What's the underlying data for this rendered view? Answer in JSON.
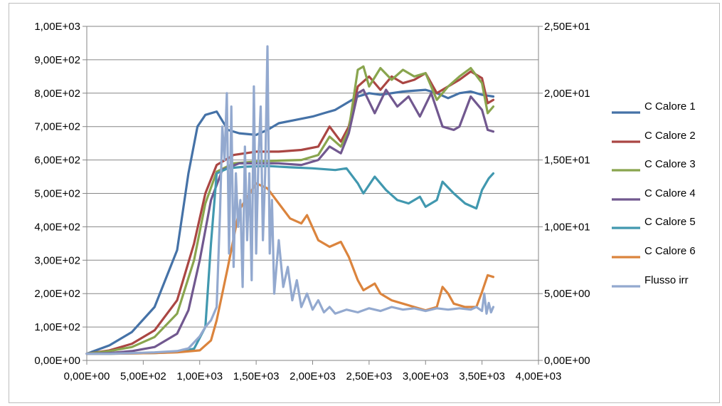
{
  "chart_data": {
    "type": "line",
    "title": "",
    "xlabel": "",
    "ylabel": "",
    "y2label": "",
    "xlim": [
      0,
      4000
    ],
    "ylim": [
      0,
      1000
    ],
    "y2lim": [
      0,
      25
    ],
    "grid": "horizontal",
    "legend_position": "right",
    "x_tick_labels": [
      "0,00E+00",
      "5,00E+02",
      "1,00E+03",
      "1,50E+03",
      "2,00E+03",
      "2,50E+03",
      "3,00E+03",
      "3,50E+03",
      "4,00E+03"
    ],
    "y_tick_labels": [
      "0,00E+00",
      "1,00E+02",
      "2,00E+02",
      "3,00E+02",
      "4,00E+02",
      "5,00E+02",
      "6,00E+02",
      "7,00E+02",
      "8,00E+02",
      "9,00E+02",
      "1,00E+03"
    ],
    "y2_tick_labels": [
      "0,00E+00",
      "5,00E+00",
      "1,00E+01",
      "1,50E+01",
      "2,00E+01",
      "2,50E+01"
    ],
    "series": [
      {
        "name": "C Calore 1",
        "color": "#4572A7",
        "axis": "left",
        "points": [
          [
            0,
            20
          ],
          [
            200,
            45
          ],
          [
            400,
            85
          ],
          [
            600,
            160
          ],
          [
            800,
            330
          ],
          [
            900,
            560
          ],
          [
            980,
            700
          ],
          [
            1050,
            735
          ],
          [
            1150,
            745
          ],
          [
            1250,
            690
          ],
          [
            1350,
            680
          ],
          [
            1500,
            675
          ],
          [
            1600,
            690
          ],
          [
            1700,
            710
          ],
          [
            1850,
            720
          ],
          [
            2000,
            730
          ],
          [
            2100,
            740
          ],
          [
            2200,
            750
          ],
          [
            2300,
            770
          ],
          [
            2400,
            790
          ],
          [
            2500,
            800
          ],
          [
            2600,
            795
          ],
          [
            2800,
            805
          ],
          [
            3000,
            810
          ],
          [
            3100,
            800
          ],
          [
            3200,
            785
          ],
          [
            3300,
            800
          ],
          [
            3400,
            805
          ],
          [
            3500,
            795
          ],
          [
            3600,
            790
          ]
        ]
      },
      {
        "name": "C Calore 2",
        "color": "#AA4643",
        "axis": "left",
        "points": [
          [
            0,
            20
          ],
          [
            200,
            30
          ],
          [
            400,
            50
          ],
          [
            600,
            90
          ],
          [
            800,
            180
          ],
          [
            950,
            350
          ],
          [
            1050,
            500
          ],
          [
            1150,
            585
          ],
          [
            1300,
            615
          ],
          [
            1500,
            625
          ],
          [
            1700,
            625
          ],
          [
            1900,
            630
          ],
          [
            2050,
            640
          ],
          [
            2150,
            700
          ],
          [
            2250,
            655
          ],
          [
            2320,
            700
          ],
          [
            2400,
            820
          ],
          [
            2500,
            850
          ],
          [
            2600,
            810
          ],
          [
            2700,
            850
          ],
          [
            2800,
            830
          ],
          [
            2900,
            840
          ],
          [
            3000,
            860
          ],
          [
            3100,
            800
          ],
          [
            3200,
            820
          ],
          [
            3300,
            840
          ],
          [
            3400,
            865
          ],
          [
            3500,
            845
          ],
          [
            3550,
            770
          ],
          [
            3600,
            780
          ]
        ]
      },
      {
        "name": "C Calore 3",
        "color": "#89A54E",
        "axis": "left",
        "points": [
          [
            0,
            20
          ],
          [
            200,
            28
          ],
          [
            400,
            40
          ],
          [
            600,
            70
          ],
          [
            800,
            140
          ],
          [
            950,
            300
          ],
          [
            1050,
            470
          ],
          [
            1150,
            565
          ],
          [
            1300,
            590
          ],
          [
            1500,
            595
          ],
          [
            1700,
            598
          ],
          [
            1900,
            600
          ],
          [
            2050,
            615
          ],
          [
            2150,
            670
          ],
          [
            2250,
            640
          ],
          [
            2320,
            690
          ],
          [
            2400,
            870
          ],
          [
            2450,
            880
          ],
          [
            2500,
            820
          ],
          [
            2600,
            875
          ],
          [
            2700,
            840
          ],
          [
            2800,
            870
          ],
          [
            2900,
            850
          ],
          [
            3000,
            860
          ],
          [
            3100,
            780
          ],
          [
            3200,
            820
          ],
          [
            3300,
            850
          ],
          [
            3400,
            875
          ],
          [
            3500,
            830
          ],
          [
            3550,
            740
          ],
          [
            3600,
            760
          ]
        ]
      },
      {
        "name": "C Calore 4",
        "color": "#71588F",
        "axis": "left",
        "points": [
          [
            0,
            20
          ],
          [
            200,
            22
          ],
          [
            400,
            28
          ],
          [
            600,
            40
          ],
          [
            800,
            80
          ],
          [
            900,
            150
          ],
          [
            1000,
            300
          ],
          [
            1100,
            480
          ],
          [
            1200,
            570
          ],
          [
            1350,
            590
          ],
          [
            1500,
            590
          ],
          [
            1700,
            590
          ],
          [
            1900,
            585
          ],
          [
            2050,
            600
          ],
          [
            2150,
            640
          ],
          [
            2250,
            620
          ],
          [
            2320,
            680
          ],
          [
            2400,
            800
          ],
          [
            2450,
            810
          ],
          [
            2550,
            740
          ],
          [
            2650,
            810
          ],
          [
            2750,
            760
          ],
          [
            2850,
            790
          ],
          [
            2950,
            730
          ],
          [
            3050,
            800
          ],
          [
            3150,
            700
          ],
          [
            3250,
            690
          ],
          [
            3300,
            700
          ],
          [
            3400,
            790
          ],
          [
            3500,
            750
          ],
          [
            3550,
            690
          ],
          [
            3600,
            685
          ]
        ]
      },
      {
        "name": "C Calore 5",
        "color": "#4198AF",
        "axis": "left",
        "points": [
          [
            0,
            20
          ],
          [
            200,
            20
          ],
          [
            400,
            21
          ],
          [
            600,
            22
          ],
          [
            800,
            25
          ],
          [
            950,
            35
          ],
          [
            1050,
            100
          ],
          [
            1100,
            350
          ],
          [
            1150,
            560
          ],
          [
            1250,
            575
          ],
          [
            1400,
            580
          ],
          [
            1600,
            582
          ],
          [
            1800,
            578
          ],
          [
            2000,
            575
          ],
          [
            2200,
            570
          ],
          [
            2300,
            575
          ],
          [
            2400,
            530
          ],
          [
            2450,
            500
          ],
          [
            2550,
            550
          ],
          [
            2650,
            510
          ],
          [
            2750,
            480
          ],
          [
            2850,
            470
          ],
          [
            2950,
            490
          ],
          [
            3000,
            460
          ],
          [
            3100,
            480
          ],
          [
            3150,
            535
          ],
          [
            3250,
            500
          ],
          [
            3350,
            470
          ],
          [
            3450,
            455
          ],
          [
            3500,
            510
          ],
          [
            3560,
            545
          ],
          [
            3600,
            560
          ]
        ]
      },
      {
        "name": "C Calore 6",
        "color": "#DB843D",
        "axis": "left",
        "points": [
          [
            0,
            20
          ],
          [
            200,
            20
          ],
          [
            400,
            21
          ],
          [
            600,
            22
          ],
          [
            800,
            24
          ],
          [
            1000,
            30
          ],
          [
            1100,
            60
          ],
          [
            1150,
            120
          ],
          [
            1250,
            280
          ],
          [
            1350,
            450
          ],
          [
            1500,
            530
          ],
          [
            1600,
            515
          ],
          [
            1700,
            470
          ],
          [
            1800,
            425
          ],
          [
            1900,
            410
          ],
          [
            1950,
            435
          ],
          [
            2050,
            360
          ],
          [
            2150,
            340
          ],
          [
            2250,
            355
          ],
          [
            2320,
            310
          ],
          [
            2400,
            240
          ],
          [
            2450,
            210
          ],
          [
            2550,
            230
          ],
          [
            2600,
            200
          ],
          [
            2700,
            180
          ],
          [
            2800,
            170
          ],
          [
            2900,
            160
          ],
          [
            3000,
            150
          ],
          [
            3100,
            160
          ],
          [
            3150,
            220
          ],
          [
            3200,
            200
          ],
          [
            3250,
            170
          ],
          [
            3350,
            160
          ],
          [
            3450,
            160
          ],
          [
            3500,
            205
          ],
          [
            3550,
            255
          ],
          [
            3600,
            250
          ]
        ]
      },
      {
        "name": "Flusso irr",
        "color": "#93A9CF",
        "axis": "right",
        "points": [
          [
            0,
            0.5
          ],
          [
            200,
            0.5
          ],
          [
            400,
            0.55
          ],
          [
            600,
            0.6
          ],
          [
            800,
            0.7
          ],
          [
            900,
            0.9
          ],
          [
            1000,
            1.8
          ],
          [
            1050,
            2.5
          ],
          [
            1100,
            3.0
          ],
          [
            1150,
            4.0
          ],
          [
            1180,
            11.0
          ],
          [
            1200,
            17.5
          ],
          [
            1220,
            15.0
          ],
          [
            1240,
            20.0
          ],
          [
            1260,
            8.0
          ],
          [
            1280,
            19.0
          ],
          [
            1300,
            7.0
          ],
          [
            1320,
            14.0
          ],
          [
            1340,
            10.0
          ],
          [
            1360,
            12.0
          ],
          [
            1380,
            5.5
          ],
          [
            1400,
            16.0
          ],
          [
            1420,
            9.0
          ],
          [
            1440,
            14.0
          ],
          [
            1460,
            6.0
          ],
          [
            1480,
            20.5
          ],
          [
            1500,
            8.0
          ],
          [
            1520,
            15.0
          ],
          [
            1540,
            19.0
          ],
          [
            1560,
            9.0
          ],
          [
            1580,
            14.0
          ],
          [
            1600,
            23.5
          ],
          [
            1620,
            8.0
          ],
          [
            1640,
            12.0
          ],
          [
            1660,
            5.0
          ],
          [
            1700,
            9.0
          ],
          [
            1740,
            5.5
          ],
          [
            1780,
            7.0
          ],
          [
            1820,
            4.5
          ],
          [
            1860,
            6.0
          ],
          [
            1900,
            4.0
          ],
          [
            1950,
            5.0
          ],
          [
            2000,
            3.8
          ],
          [
            2050,
            4.5
          ],
          [
            2100,
            3.6
          ],
          [
            2150,
            4.0
          ],
          [
            2200,
            3.5
          ],
          [
            2300,
            3.8
          ],
          [
            2400,
            3.6
          ],
          [
            2500,
            3.9
          ],
          [
            2600,
            3.7
          ],
          [
            2700,
            4.0
          ],
          [
            2800,
            3.8
          ],
          [
            2900,
            3.9
          ],
          [
            3000,
            3.7
          ],
          [
            3100,
            3.9
          ],
          [
            3200,
            3.8
          ],
          [
            3300,
            3.9
          ],
          [
            3400,
            3.8
          ],
          [
            3450,
            4.0
          ],
          [
            3500,
            3.7
          ],
          [
            3520,
            5.0
          ],
          [
            3540,
            3.5
          ],
          [
            3560,
            4.3
          ],
          [
            3580,
            3.6
          ],
          [
            3600,
            4.0
          ]
        ]
      }
    ]
  }
}
